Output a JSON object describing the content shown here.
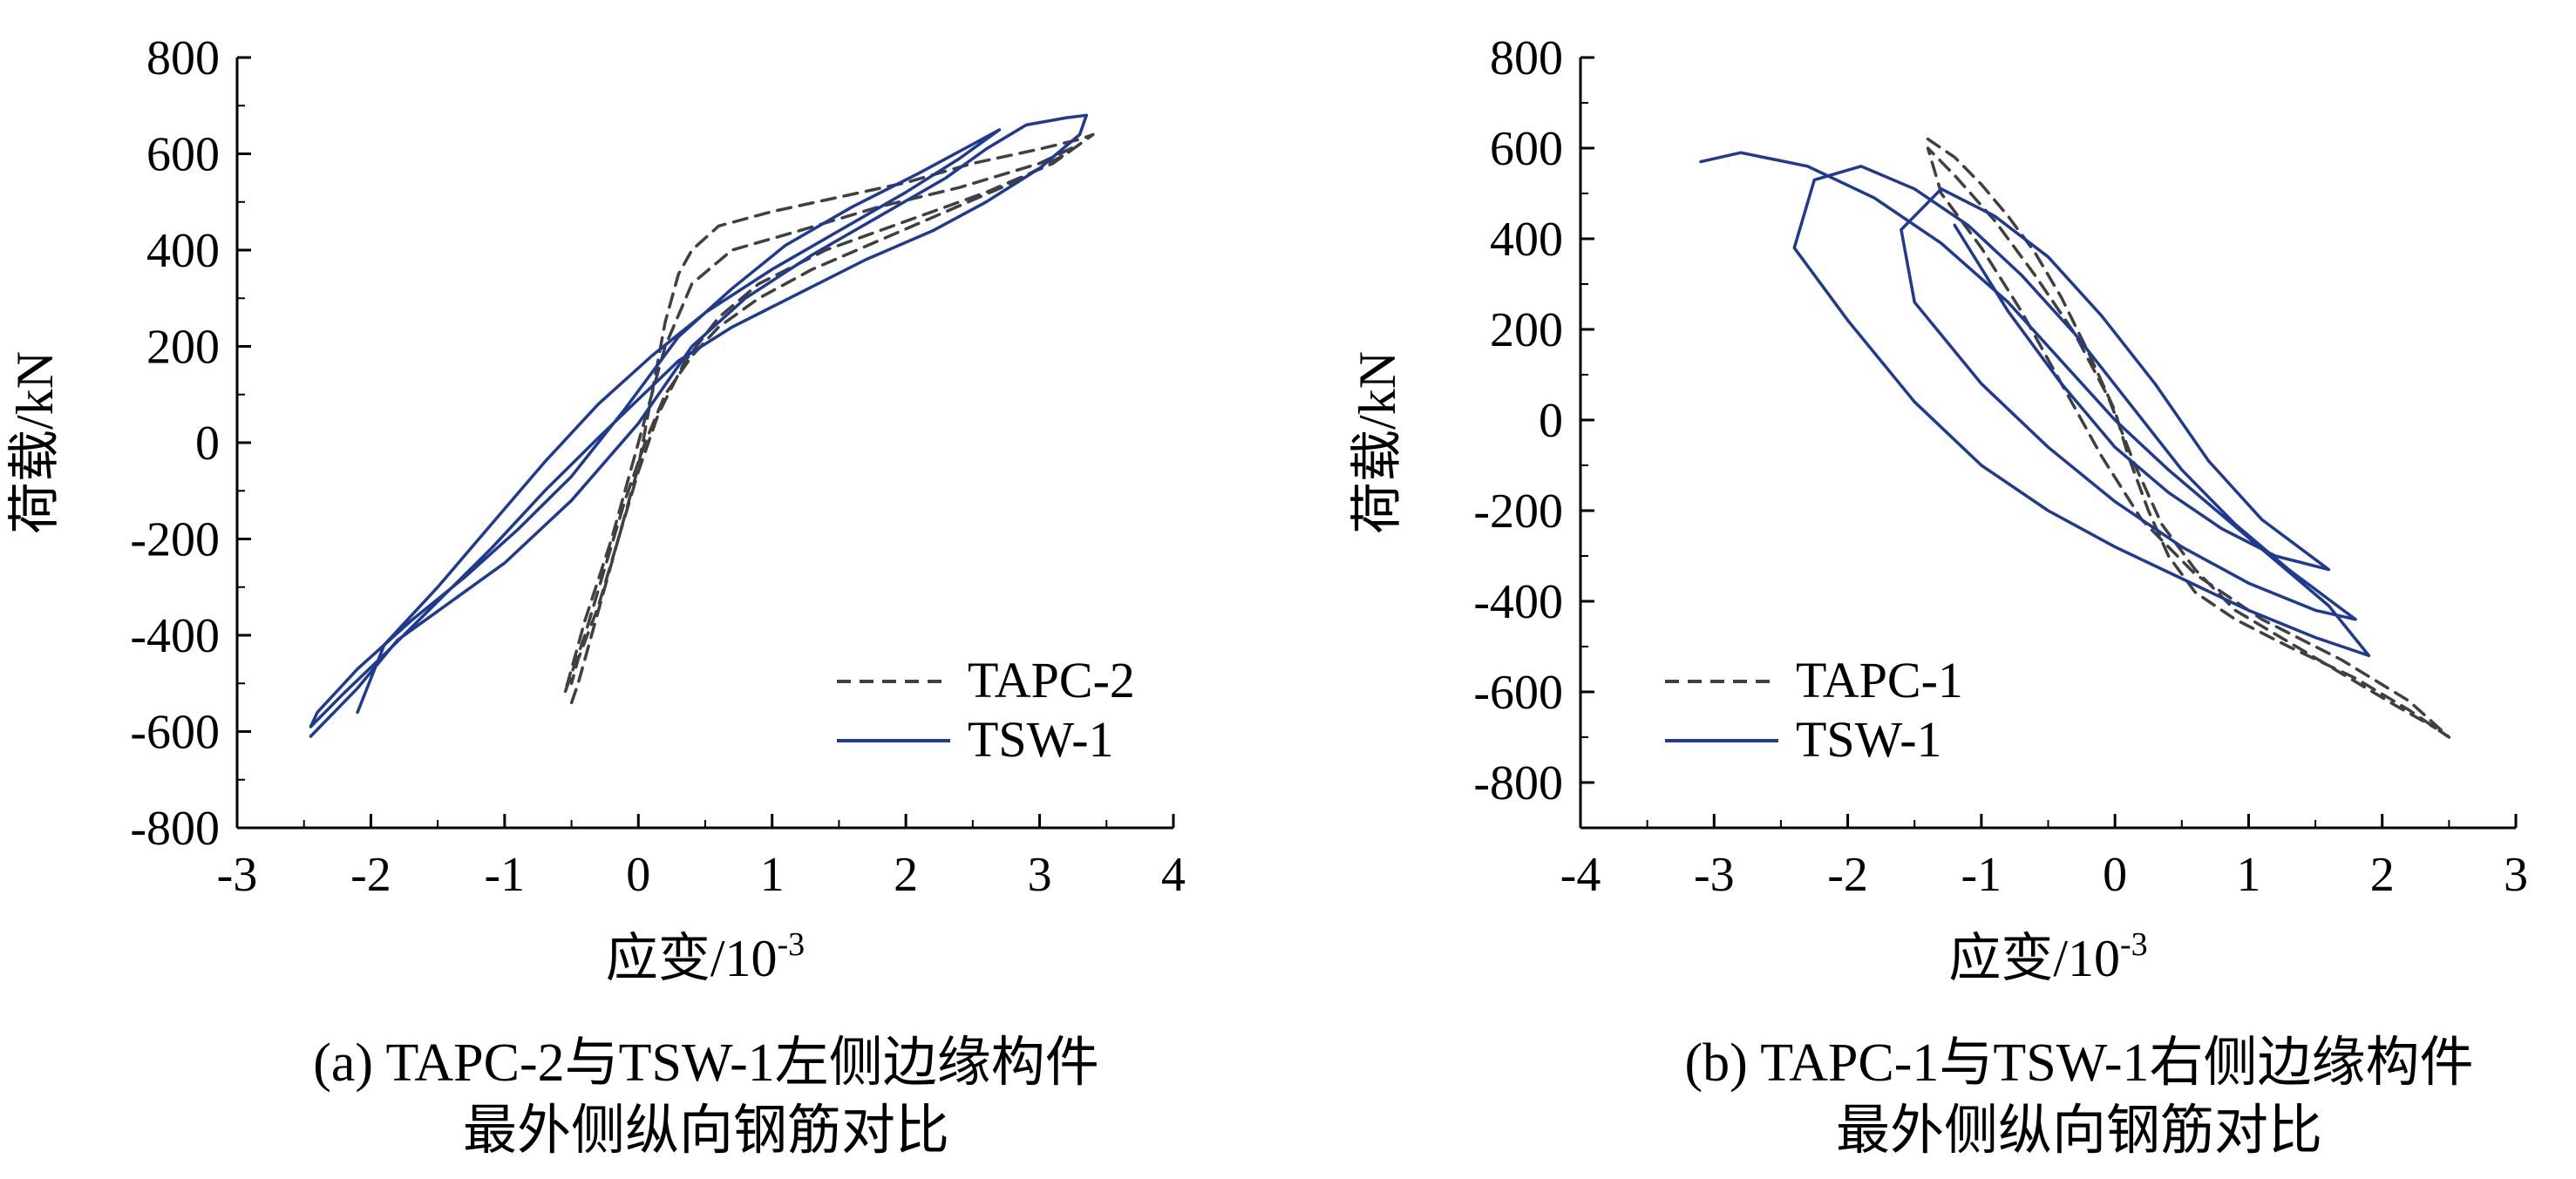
{
  "chart_data": [
    {
      "type": "line",
      "xlabel": "应变/10",
      "xlabel_exp": "-3",
      "ylabel": "荷载/kN",
      "xlim": [
        -3,
        4
      ],
      "ylim": [
        -800,
        800
      ],
      "xticks": [
        "-3",
        "-2",
        "-1",
        "0",
        "1",
        "2",
        "3",
        "4"
      ],
      "yticks": [
        "800",
        "600",
        "400",
        "200",
        "0",
        "-200",
        "-400",
        "-600",
        "-800"
      ],
      "legend_position": "bottom-right",
      "caption_line1": "(a) TAPC-2与TSW-1左侧边缘构件",
      "caption_line2": "最外侧纵向钢筋对比",
      "series": [
        {
          "name": "TAPC-2",
          "style": "dashed",
          "color": "#404040",
          "x": [
            -0.5,
            -0.45,
            -0.35,
            -0.2,
            0.0,
            0.1,
            0.2,
            0.3,
            0.4,
            0.6,
            1.0,
            1.5,
            2.0,
            2.5,
            3.0,
            3.3,
            3.4,
            3.2,
            2.8,
            2.3,
            1.8,
            1.3,
            0.9,
            0.6,
            0.4,
            0.2,
            0.05,
            -0.1,
            -0.25,
            -0.4,
            -0.5,
            -0.55,
            -0.5,
            -0.4,
            -0.2,
            0.0,
            0.2,
            0.4,
            0.7,
            1.2,
            1.8,
            2.4,
            3.0,
            3.3,
            3.1,
            2.6,
            2.0,
            1.4,
            0.9,
            0.6,
            0.35,
            0.15,
            0.0,
            -0.15,
            -0.3,
            -0.45,
            -0.5
          ],
          "y": [
            -540,
            -500,
            -400,
            -250,
            -50,
            100,
            250,
            350,
            400,
            450,
            480,
            510,
            540,
            580,
            610,
            630,
            640,
            600,
            540,
            480,
            420,
            360,
            300,
            240,
            180,
            100,
            0,
            -120,
            -260,
            -400,
            -480,
            -520,
            -470,
            -370,
            -200,
            0,
            200,
            330,
            400,
            440,
            490,
            530,
            580,
            620,
            580,
            520,
            460,
            400,
            330,
            260,
            170,
            60,
            -60,
            -200,
            -340,
            -450,
            -500
          ]
        },
        {
          "name": "TSW-1",
          "style": "solid",
          "color": "#1f3a93",
          "x": [
            -2.45,
            -2.1,
            -1.8,
            -1.4,
            -1.0,
            -0.5,
            0.0,
            0.4,
            0.8,
            1.3,
            1.8,
            2.3,
            2.6,
            2.9,
            3.2,
            3.35,
            3.3,
            3.0,
            2.6,
            2.2,
            1.7,
            1.2,
            0.7,
            0.3,
            0.0,
            -0.3,
            -0.7,
            -1.1,
            -1.5,
            -1.9,
            -2.2,
            -2.45,
            -2.4,
            -2.1,
            -1.7,
            -1.3,
            -0.9,
            -0.5,
            -0.1,
            0.3,
            0.7,
            1.1,
            1.6,
            2.1,
            2.5,
            2.7,
            2.4,
            2.0,
            1.5,
            1.0,
            0.5,
            0.1,
            -0.3,
            -0.7,
            -1.1,
            -1.5,
            -1.9,
            -2.1
          ],
          "y": [
            -610,
            -510,
            -410,
            -330,
            -250,
            -120,
            40,
            200,
            300,
            390,
            470,
            550,
            610,
            660,
            675,
            680,
            640,
            570,
            500,
            440,
            380,
            310,
            240,
            170,
            90,
            10,
            -100,
            -220,
            -330,
            -440,
            -520,
            -590,
            -560,
            -470,
            -370,
            -280,
            -180,
            -70,
            70,
            220,
            320,
            410,
            490,
            560,
            620,
            650,
            590,
            520,
            440,
            360,
            270,
            180,
            80,
            -40,
            -170,
            -300,
            -420,
            -560
          ]
        }
      ]
    },
    {
      "type": "line",
      "xlabel": "应变/10",
      "xlabel_exp": "-3",
      "ylabel": "荷载/kN",
      "xlim": [
        -4,
        3
      ],
      "ylim": [
        -900,
        800
      ],
      "xticks": [
        "-4",
        "-3",
        "-2",
        "-1",
        "0",
        "1",
        "2",
        "3"
      ],
      "yticks": [
        "800",
        "600",
        "400",
        "200",
        "0",
        "-200",
        "-400",
        "-600",
        "-800"
      ],
      "legend_position": "bottom-left",
      "caption_line1": "(b) TAPC-1与TSW-1右侧边缘构件",
      "caption_line2": "最外侧纵向钢筋对比",
      "series": [
        {
          "name": "TAPC-1",
          "style": "dashed",
          "color": "#404040",
          "x": [
            -1.4,
            -1.2,
            -1.0,
            -0.8,
            -0.6,
            -0.4,
            -0.2,
            0.0,
            0.1,
            0.25,
            0.4,
            0.6,
            0.9,
            1.3,
            1.8,
            2.2,
            2.5,
            2.2,
            1.7,
            1.1,
            0.6,
            0.2,
            -0.1,
            -0.4,
            -0.7,
            -1.0,
            -1.3,
            -1.4,
            -1.2,
            -0.9,
            -0.6,
            -0.3,
            -0.05,
            0.15,
            0.35,
            0.6,
            0.9,
            1.3,
            1.7,
            2.1,
            2.4
          ],
          "y": [
            620,
            580,
            520,
            450,
            370,
            270,
            150,
            20,
            -80,
            -200,
            -300,
            -380,
            -440,
            -500,
            -570,
            -640,
            -700,
            -620,
            -530,
            -440,
            -340,
            -220,
            -80,
            80,
            240,
            380,
            500,
            600,
            540,
            440,
            320,
            190,
            50,
            -100,
            -230,
            -330,
            -420,
            -490,
            -560,
            -630,
            -680
          ]
        },
        {
          "name": "TSW-1",
          "style": "solid",
          "color": "#1f3a93",
          "x": [
            -3.1,
            -2.8,
            -2.3,
            -1.8,
            -1.3,
            -0.8,
            -0.4,
            0.0,
            0.4,
            0.8,
            1.2,
            1.6,
            1.9,
            1.5,
            1.0,
            0.5,
            0.0,
            -0.5,
            -1.0,
            -1.5,
            -2.0,
            -2.4,
            -2.25,
            -1.9,
            -1.5,
            -1.1,
            -0.7,
            -0.3,
            0.1,
            0.5,
            0.9,
            1.3,
            1.8,
            1.5,
            1.0,
            0.5,
            0.0,
            -0.5,
            -1.0,
            -1.5,
            -1.6,
            -1.3,
            -0.9,
            -0.5,
            -0.1,
            0.3,
            0.7,
            1.1,
            1.6,
            1.2,
            0.8,
            0.4,
            0.0,
            -0.4,
            -0.8,
            -1.2
          ],
          "y": [
            570,
            590,
            560,
            490,
            390,
            260,
            130,
            0,
            -110,
            -210,
            -310,
            -410,
            -520,
            -480,
            -420,
            -350,
            -280,
            -200,
            -100,
            40,
            220,
            380,
            530,
            560,
            510,
            430,
            320,
            190,
            40,
            -110,
            -230,
            -330,
            -440,
            -420,
            -360,
            -280,
            -180,
            -60,
            80,
            260,
            420,
            510,
            450,
            360,
            230,
            80,
            -90,
            -220,
            -330,
            -300,
            -240,
            -160,
            -60,
            80,
            240,
            430
          ]
        }
      ]
    }
  ]
}
